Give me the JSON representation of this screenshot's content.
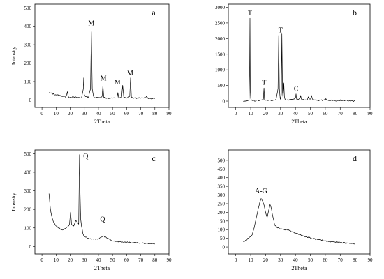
{
  "chart_data": [
    {
      "type": "line",
      "panel_label": "a",
      "xlabel": "2Theta",
      "ylabel": "Intensity",
      "xlim": [
        -5,
        90
      ],
      "ylim": [
        -40,
        520
      ],
      "xticks": [
        0,
        10,
        20,
        30,
        40,
        50,
        60,
        70,
        80,
        90
      ],
      "yticks": [
        0,
        100,
        200,
        300,
        400,
        500
      ],
      "series": [
        {
          "x": [
            5,
            10,
            15,
            17,
            18,
            18.5,
            19,
            22,
            25,
            28,
            29.3,
            29.6,
            30,
            31,
            33,
            34.4,
            35,
            35.6,
            36.5,
            37,
            40,
            42.6,
            43.2,
            43.8,
            46,
            50,
            53.2,
            53.8,
            54.4,
            56.4,
            57.2,
            58,
            60,
            62.2,
            62.8,
            63.4,
            66,
            70,
            73,
            74,
            75,
            78,
            80
          ],
          "y": [
            40,
            28,
            20,
            18,
            45,
            22,
            15,
            15,
            14,
            12,
            60,
            120,
            30,
            18,
            16,
            60,
            370,
            60,
            20,
            15,
            12,
            20,
            80,
            15,
            10,
            10,
            12,
            40,
            10,
            14,
            80,
            14,
            10,
            20,
            120,
            14,
            10,
            10,
            12,
            20,
            10,
            8,
            8
          ]
        }
      ],
      "annotations": [
        {
          "text": "M",
          "x": 35,
          "y": 405
        },
        {
          "text": "M",
          "x": 43.5,
          "y": 105
        },
        {
          "text": "M",
          "x": 53.5,
          "y": 85
        },
        {
          "text": "M",
          "x": 62.5,
          "y": 135
        }
      ]
    },
    {
      "type": "line",
      "panel_label": "b",
      "xlabel": "2Theta",
      "ylabel": "",
      "xlim": [
        -5,
        90
      ],
      "ylim": [
        -200,
        3100
      ],
      "xticks": [
        0,
        10,
        20,
        30,
        40,
        50,
        60,
        70,
        80,
        90
      ],
      "yticks": [
        0,
        500,
        1000,
        1500,
        2000,
        2500,
        3000
      ],
      "series": [
        {
          "x": [
            5,
            8,
            8.9,
            9.3,
            9.5,
            9.7,
            10,
            10.6,
            11,
            15,
            18.5,
            18.9,
            19.3,
            20,
            25,
            27,
            28.3,
            28.8,
            29.2,
            29.8,
            30.5,
            30.9,
            31.3,
            31.7,
            32.2,
            32.6,
            33,
            34,
            36,
            39,
            40,
            40.4,
            40.8,
            42,
            43,
            43.5,
            44,
            45,
            48,
            48.6,
            49.2,
            50.2,
            50.8,
            51.4,
            53,
            55,
            60,
            60.4,
            61,
            65,
            70,
            70.5,
            71,
            75,
            80
          ],
          "y": [
            0,
            10,
            50,
            1100,
            2650,
            400,
            80,
            30,
            20,
            15,
            60,
            420,
            50,
            25,
            30,
            60,
            400,
            2100,
            400,
            60,
            200,
            2150,
            300,
            100,
            580,
            150,
            60,
            30,
            50,
            60,
            100,
            230,
            60,
            50,
            80,
            180,
            60,
            40,
            50,
            140,
            60,
            60,
            180,
            60,
            40,
            30,
            30,
            80,
            30,
            20,
            15,
            60,
            15,
            10,
            10
          ]
        }
      ],
      "annotations": [
        {
          "text": "T",
          "x": 9.5,
          "y": 2750
        },
        {
          "text": "T",
          "x": 19,
          "y": 520
        },
        {
          "text": "T",
          "x": 30,
          "y": 2200
        },
        {
          "text": "C",
          "x": 40.5,
          "y": 320
        }
      ]
    },
    {
      "type": "line",
      "panel_label": "c",
      "xlabel": "2Theta",
      "ylabel": "Intensity",
      "xlim": [
        -5,
        90
      ],
      "ylim": [
        -40,
        520
      ],
      "xticks": [
        0,
        10,
        20,
        30,
        40,
        50,
        60,
        70,
        80,
        90
      ],
      "yticks": [
        0,
        100,
        200,
        300,
        400,
        500
      ],
      "series": [
        {
          "x": [
            5,
            5.5,
            6,
            7,
            8,
            10,
            12,
            14,
            16,
            18,
            19.5,
            20.3,
            21,
            22.5,
            24,
            25,
            26,
            26.6,
            27,
            27.4,
            28,
            29,
            30,
            31,
            32,
            34,
            36,
            38,
            40,
            42,
            44,
            46,
            48,
            50,
            55,
            60,
            65,
            70,
            75,
            80
          ],
          "y": [
            285,
            240,
            200,
            160,
            135,
            110,
            100,
            90,
            95,
            105,
            120,
            185,
            120,
            110,
            140,
            130,
            120,
            495,
            280,
            150,
            110,
            70,
            55,
            50,
            45,
            42,
            40,
            38,
            40,
            50,
            55,
            45,
            38,
            30,
            25,
            22,
            20,
            18,
            17,
            15
          ]
        }
      ],
      "annotations": [
        {
          "text": "Q",
          "x": 31,
          "y": 475
        },
        {
          "text": "Q",
          "x": 43,
          "y": 135
        }
      ]
    },
    {
      "type": "line",
      "panel_label": "d",
      "xlabel": "2Theta",
      "ylabel": "",
      "xlim": [
        -5,
        90
      ],
      "ylim": [
        -40,
        560
      ],
      "xticks": [
        0,
        10,
        20,
        30,
        40,
        50,
        60,
        70,
        80,
        90
      ],
      "yticks": [
        0,
        50,
        100,
        150,
        200,
        250,
        300,
        350,
        400,
        450,
        500
      ],
      "series": [
        {
          "x": [
            5,
            7,
            9,
            11,
            12,
            13,
            14,
            15,
            16,
            17,
            18,
            19,
            20,
            21,
            22,
            23,
            24,
            25,
            26,
            28,
            30,
            32,
            34,
            36,
            38,
            40,
            43,
            46,
            50,
            55,
            60,
            65,
            70,
            75,
            80
          ],
          "y": [
            30,
            40,
            55,
            70,
            100,
            140,
            180,
            220,
            255,
            280,
            265,
            240,
            200,
            170,
            210,
            245,
            215,
            170,
            130,
            110,
            105,
            102,
            100,
            95,
            88,
            80,
            70,
            62,
            52,
            42,
            35,
            30,
            26,
            22,
            20
          ]
        }
      ],
      "annotations": [
        {
          "text": "A-G",
          "x": 17,
          "y": 310
        }
      ]
    }
  ]
}
